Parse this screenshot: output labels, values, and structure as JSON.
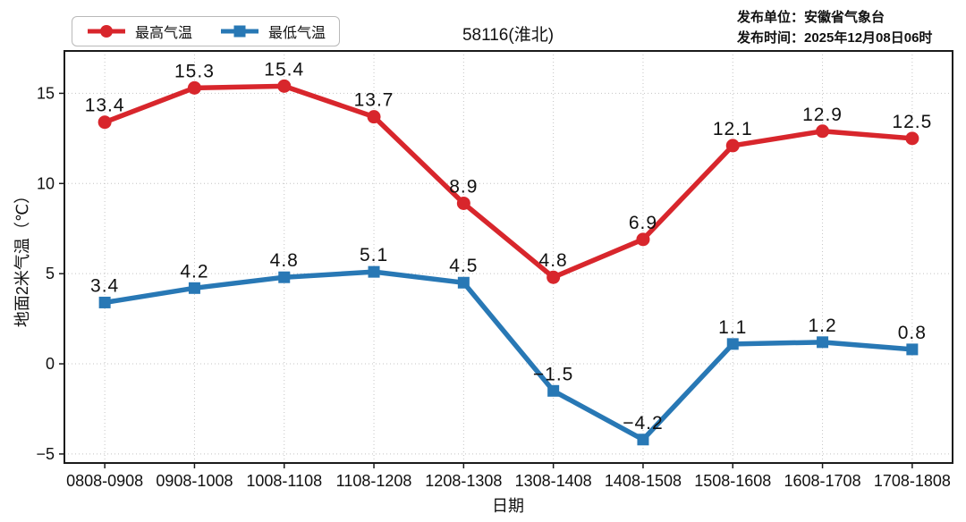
{
  "header": {
    "publisher_unit": "发布单位：安徽省气象台",
    "publish_time": "发布时间：2025年12月08日06时"
  },
  "colors": {
    "max_temp": "#d8262c",
    "min_temp": "#2878b5",
    "grid": "#c4c4c4",
    "frame": "#1a1a1a",
    "text": "#111111"
  },
  "chart_data": {
    "type": "line",
    "title": "58116(淮北)",
    "xlabel": "日期",
    "ylabel": "地面2米气温（℃）",
    "categories": [
      "0808-0908",
      "0908-1008",
      "1008-1108",
      "1108-1208",
      "1208-1308",
      "1308-1408",
      "1408-1508",
      "1508-1608",
      "1608-1708",
      "1708-1808"
    ],
    "series": [
      {
        "name": "最高气温",
        "marker": "circle",
        "color": "#d8262c",
        "values": [
          13.4,
          15.3,
          15.4,
          13.7,
          8.9,
          4.8,
          6.9,
          12.1,
          12.9,
          12.5
        ],
        "labels": [
          "13.4",
          "15.3",
          "15.4",
          "13.7",
          "8.9",
          "4.8",
          "6.9",
          "12.1",
          "12.9",
          "12.5"
        ]
      },
      {
        "name": "最低气温",
        "marker": "square",
        "color": "#2878b5",
        "values": [
          3.4,
          4.2,
          4.8,
          5.1,
          4.5,
          -1.5,
          -4.2,
          1.1,
          1.2,
          0.8
        ],
        "labels": [
          "3.4",
          "4.2",
          "4.8",
          "5.1",
          "4.5",
          "−1.5",
          "−4.2",
          "1.1",
          "1.2",
          "0.8"
        ]
      }
    ],
    "yticks": [
      -5,
      0,
      5,
      10,
      15
    ],
    "ytick_labels": [
      "−5",
      "0",
      "5",
      "10",
      "15"
    ],
    "ylim": [
      -5.5,
      17.35
    ],
    "grid": "dotted",
    "legend_position": "top-left"
  }
}
